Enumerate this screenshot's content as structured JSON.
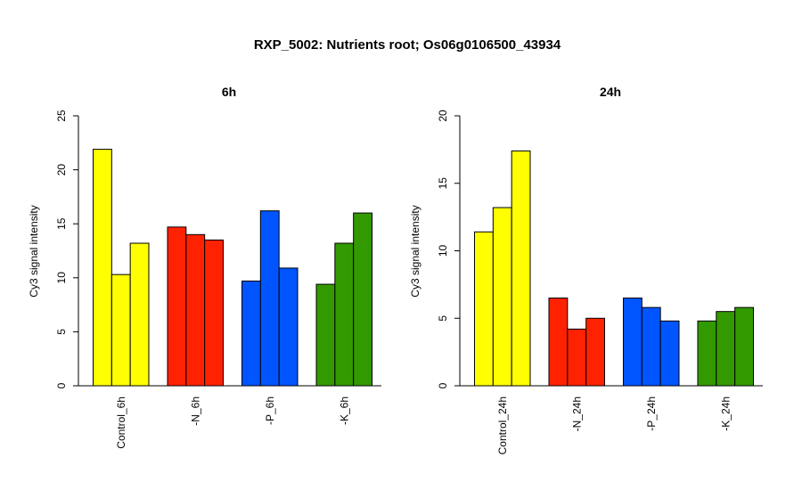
{
  "title": "RXP_5002: Nutrients root; Os06g0106500_43934",
  "colors": {
    "control": "#ffff00",
    "n": "#ff2200",
    "p": "#0055ff",
    "k": "#339900"
  },
  "chart_data": [
    {
      "type": "bar",
      "title": "6h",
      "ylabel": "Cy3 signal intensity",
      "ylim": [
        0,
        25
      ],
      "yticks": [
        0,
        5,
        10,
        15,
        20,
        25
      ],
      "categories": [
        "Control_6h",
        "-N_6h",
        "-P_6h",
        "-K_6h"
      ],
      "groups": [
        {
          "label": "Control_6h",
          "color_key": "control",
          "values": [
            21.9,
            10.3,
            13.2
          ]
        },
        {
          "label": "-N_6h",
          "color_key": "n",
          "values": [
            14.7,
            14.0,
            13.5
          ]
        },
        {
          "label": "-P_6h",
          "color_key": "p",
          "values": [
            9.7,
            16.2,
            10.9
          ]
        },
        {
          "label": "-K_6h",
          "color_key": "k",
          "values": [
            9.4,
            13.2,
            16.0
          ]
        }
      ]
    },
    {
      "type": "bar",
      "title": "24h",
      "ylabel": "Cy3 signal intensity",
      "ylim": [
        0,
        20
      ],
      "yticks": [
        0,
        5,
        10,
        15,
        20
      ],
      "categories": [
        "Control_24h",
        "-N_24h",
        "-P_24h",
        "-K_24h"
      ],
      "groups": [
        {
          "label": "Control_24h",
          "color_key": "control",
          "values": [
            11.4,
            13.2,
            17.4
          ]
        },
        {
          "label": "-N_24h",
          "color_key": "n",
          "values": [
            6.5,
            4.2,
            5.0
          ]
        },
        {
          "label": "-P_24h",
          "color_key": "p",
          "values": [
            6.5,
            5.8,
            4.8
          ]
        },
        {
          "label": "-K_24h",
          "color_key": "k",
          "values": [
            4.8,
            5.5,
            5.8
          ]
        }
      ]
    }
  ]
}
